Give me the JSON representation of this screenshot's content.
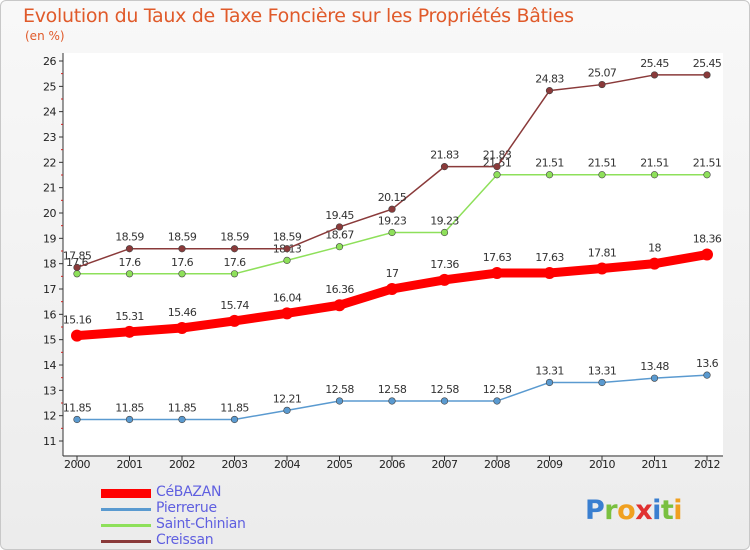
{
  "title": "Evolution du Taux de Taxe Foncière sur les Propriétés Bâties",
  "unit": "(en %)",
  "logo_text": "Proxiti",
  "chart_data": {
    "type": "line",
    "title": "Evolution du Taux de Taxe Foncière sur les Propriétés Bâties",
    "ylabel": "(en %)",
    "xlabel": "",
    "x": [
      "2000",
      "2001",
      "2002",
      "2003",
      "2004",
      "2005",
      "2006",
      "2007",
      "2008",
      "2009",
      "2010",
      "2011",
      "2012"
    ],
    "ylim": [
      11,
      26
    ],
    "yticks": [
      "11",
      "12",
      "13",
      "14",
      "15",
      "16",
      "17",
      "18",
      "19",
      "20",
      "21",
      "22",
      "23",
      "24",
      "25",
      "26"
    ],
    "grid": false,
    "legend_position": "bottom-left",
    "series": [
      {
        "name": "CéBAZAN",
        "color": "#ff0000",
        "values": [
          15.16,
          15.31,
          15.46,
          15.74,
          16.04,
          16.36,
          17,
          17.36,
          17.63,
          17.63,
          17.81,
          18,
          18.36
        ],
        "labels": [
          "15.16",
          "15.31",
          "15.46",
          "15.74",
          "16.04",
          "16.36",
          "17",
          "17.36",
          "17.63",
          "17.63",
          "17.81",
          "18",
          "18.36"
        ]
      },
      {
        "name": "Pierrerue",
        "color": "#5a9ad0",
        "values": [
          11.85,
          11.85,
          11.85,
          11.85,
          12.21,
          12.58,
          12.58,
          12.58,
          12.58,
          13.31,
          13.31,
          13.48,
          13.6
        ],
        "labels": [
          "11.85",
          "11.85",
          "11.85",
          "11.85",
          "12.21",
          "12.58",
          "12.58",
          "12.58",
          "12.58",
          "13.31",
          "13.31",
          "13.48",
          "13.6"
        ]
      },
      {
        "name": "Saint-Chinian",
        "color": "#8ee05a",
        "values": [
          17.6,
          17.6,
          17.6,
          17.6,
          18.13,
          18.67,
          19.23,
          19.23,
          21.51,
          21.51,
          21.51,
          21.51,
          21.51
        ],
        "labels": [
          "17.6",
          "17.6",
          "17.6",
          "17.6",
          "18.13",
          "18.67",
          "19.23",
          "19.23",
          "21.51",
          "21.51",
          "21.51",
          "21.51",
          "21.51"
        ]
      },
      {
        "name": "Creissan",
        "color": "#8a3a3a",
        "values": [
          17.85,
          18.59,
          18.59,
          18.59,
          18.59,
          19.45,
          20.15,
          21.83,
          21.83,
          24.83,
          25.07,
          25.45,
          25.45
        ],
        "labels": [
          "17.85",
          "18.59",
          "18.59",
          "18.59",
          "18.59",
          "19.45",
          "20.15",
          "21.83",
          "21.83",
          "24.83",
          "25.07",
          "25.45",
          "25.45"
        ]
      }
    ]
  }
}
